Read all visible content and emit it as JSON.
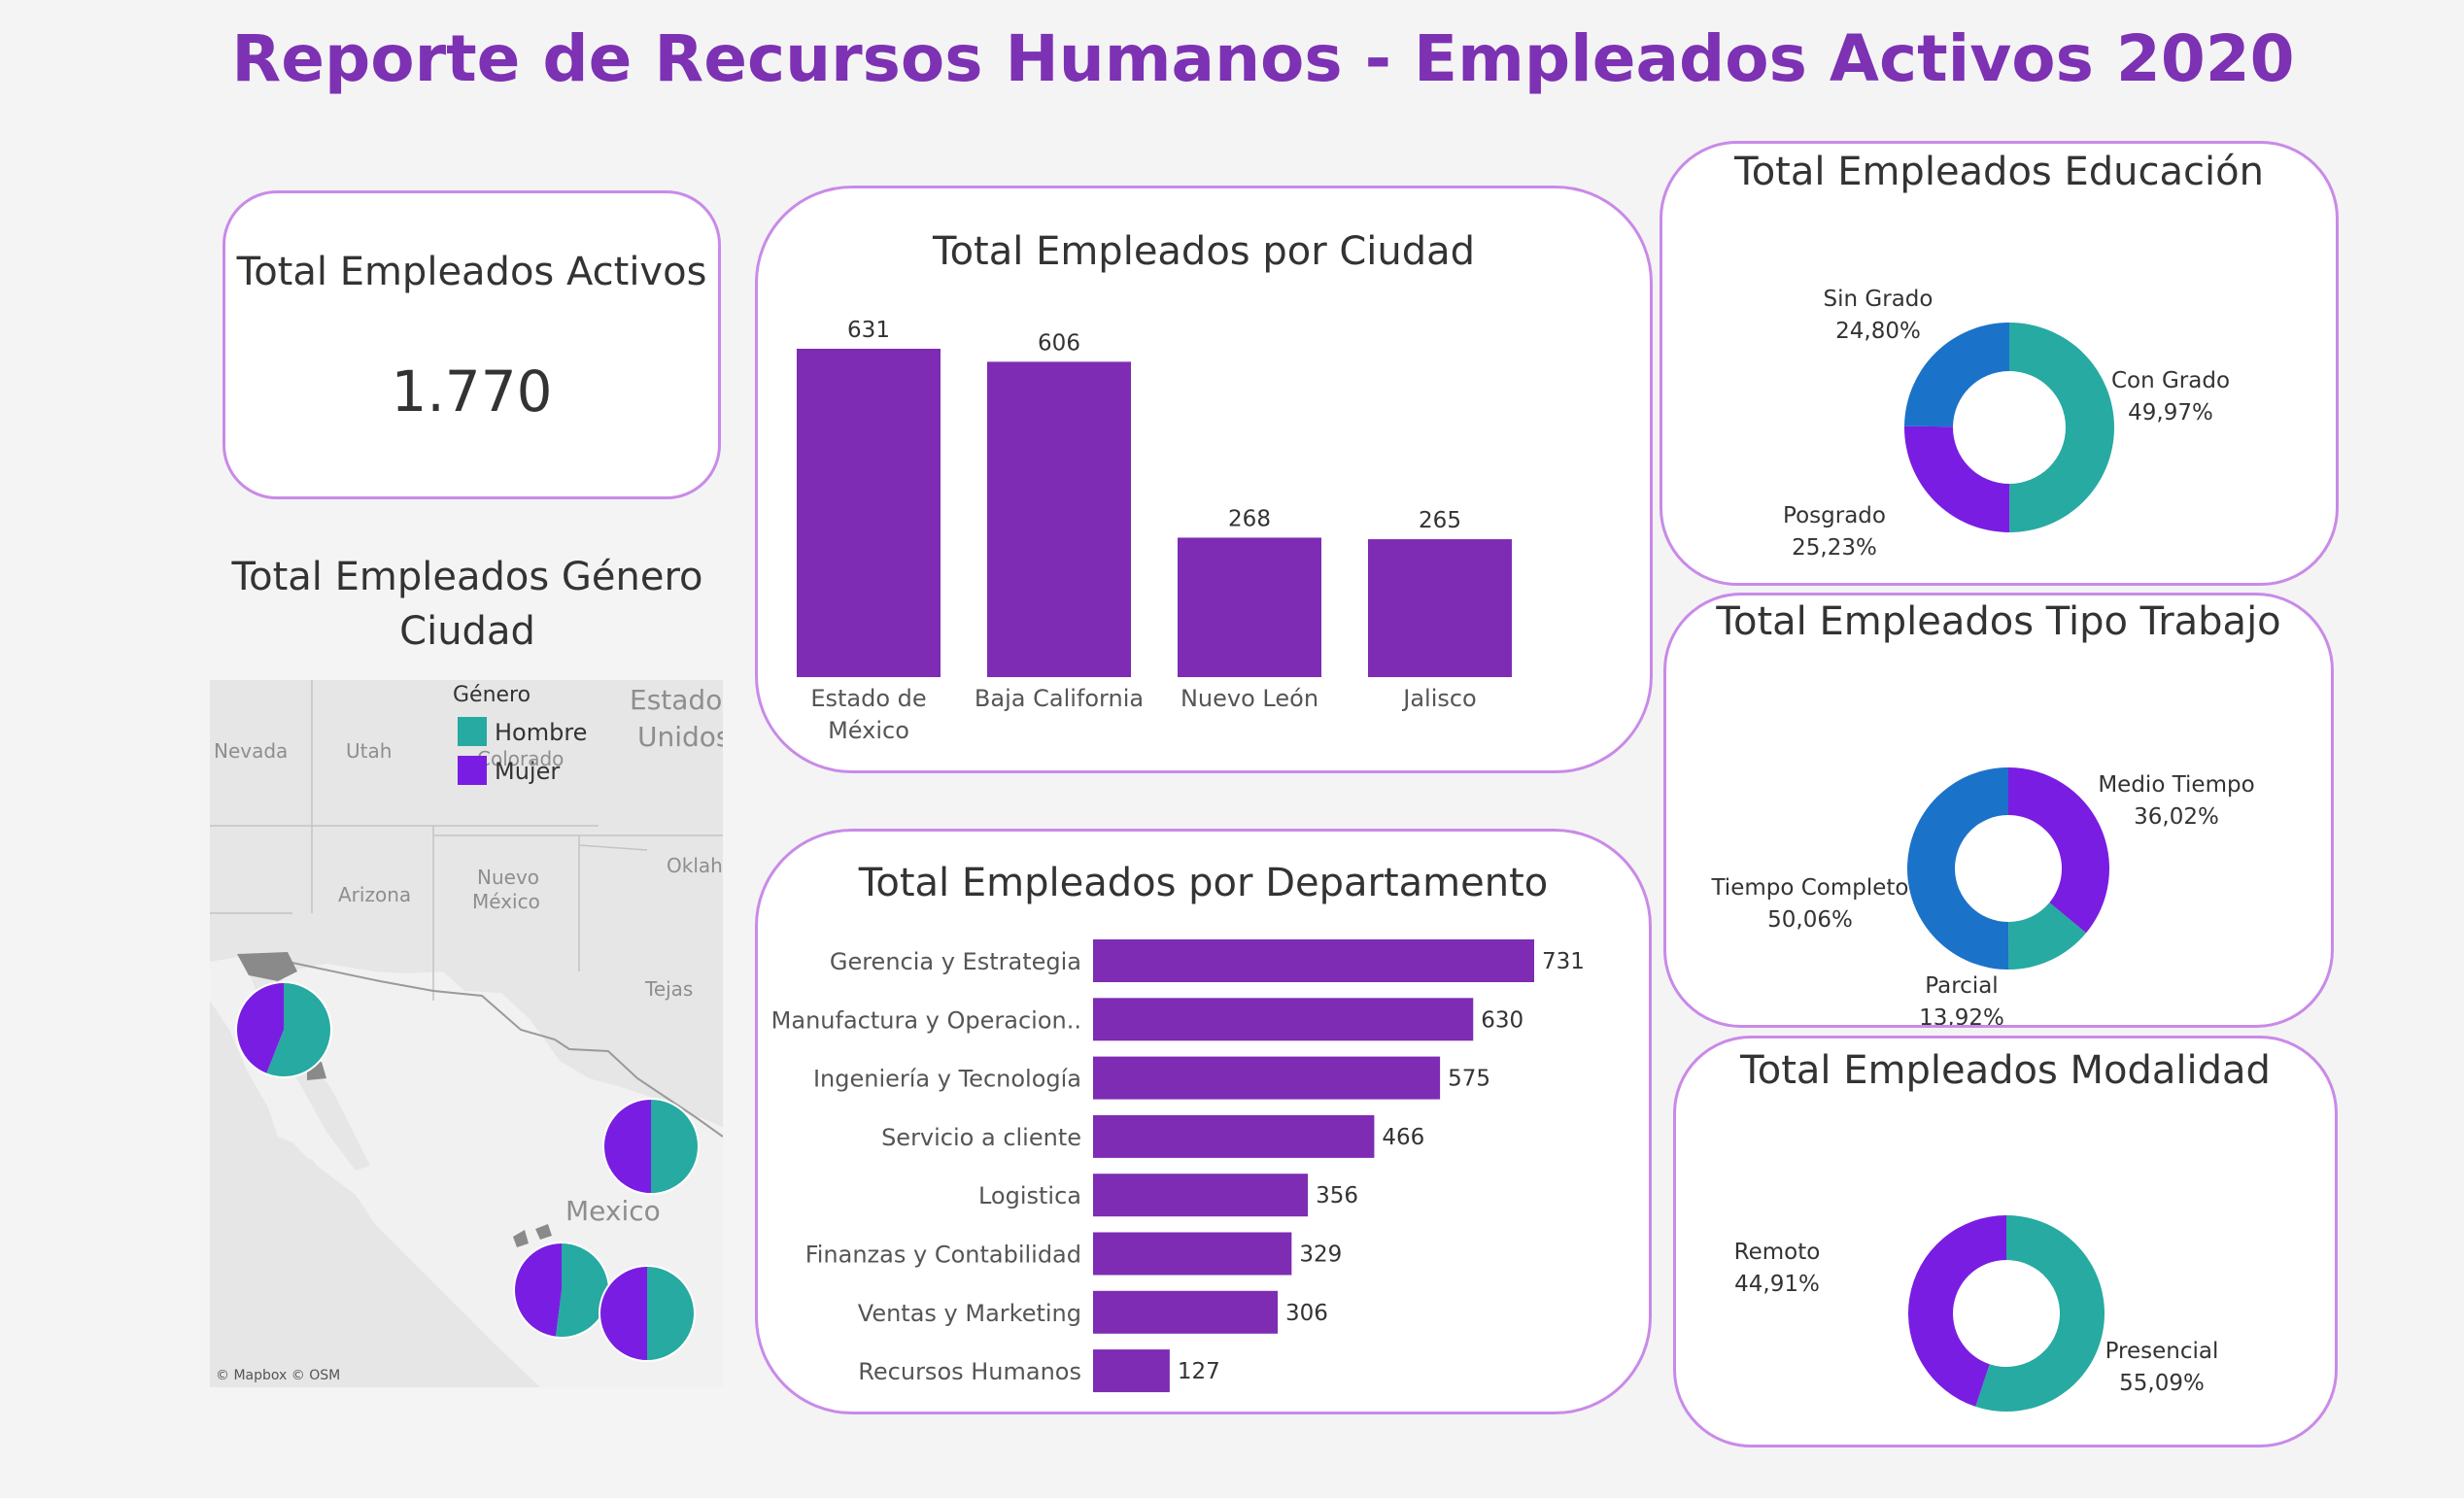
{
  "dashboard": {
    "title": "Reporte de Recursos Humanos - Empleados Activos 2020"
  },
  "kpi": {
    "title": "Total Empleados Activos",
    "value": "1.770"
  },
  "colors": {
    "purple": "#7d2cb3",
    "teal": "#26aaa1",
    "violet": "#7a1de2",
    "blue": "#1b72c9",
    "accent": "#7d31b3"
  },
  "map": {
    "title_line1": "Total Empleados Género",
    "title_line2": "Ciudad",
    "legend_title": "Género",
    "legend_items": [
      "Hombre",
      "Mujer"
    ],
    "labels": [
      "Nevada",
      "Utah",
      "Colorado",
      "Estados",
      "Unidos",
      "Arizona",
      "Nuevo",
      "México",
      "Oklah",
      "Tejas",
      "Mexico"
    ],
    "attribution": "© Mapbox © OSM"
  },
  "chart_data": [
    {
      "type": "bar",
      "title": "Total Empleados por Ciudad",
      "categories": [
        "Estado de México",
        "Baja California",
        "Nuevo León",
        "Jalisco"
      ],
      "category_lines": [
        [
          "Estado de",
          "México"
        ],
        [
          "Baja California"
        ],
        [
          "Nuevo León"
        ],
        [
          "Jalisco"
        ]
      ],
      "values": [
        631,
        606,
        268,
        265
      ],
      "ylim": [
        0,
        631
      ]
    },
    {
      "type": "bar",
      "orientation": "horizontal",
      "title": "Total Empleados por Departamento",
      "categories": [
        "Gerencia y Estrategia",
        "Manufactura y Operacion..",
        "Ingeniería y Tecnología",
        "Servicio a cliente",
        "Logistica",
        "Finanzas y Contabilidad",
        "Ventas y Marketing",
        "Recursos Humanos"
      ],
      "values": [
        731,
        630,
        575,
        466,
        356,
        329,
        306,
        127
      ],
      "xlim": [
        0,
        731
      ]
    },
    {
      "type": "pie",
      "title": "Total Empleados Educación",
      "labels": [
        "Con Grado",
        "Posgrado",
        "Sin Grado"
      ],
      "values": [
        49.97,
        25.23,
        24.8
      ],
      "value_labels": [
        "49,97%",
        "25,23%",
        "24,80%"
      ],
      "colors": [
        "#26aaa1",
        "#7a1de2",
        "#1b72c9"
      ]
    },
    {
      "type": "pie",
      "title": "Total Empleados Tipo Trabajo",
      "labels": [
        "Medio Tiempo",
        "Parcial",
        "Tiempo Completo"
      ],
      "values": [
        36.02,
        13.92,
        50.06
      ],
      "value_labels": [
        "36,02%",
        "13,92%",
        "50,06%"
      ],
      "colors": [
        "#7a1de2",
        "#26aaa1",
        "#1b72c9"
      ]
    },
    {
      "type": "pie",
      "title": "Total Empleados Modalidad",
      "labels": [
        "Presencial",
        "Remoto"
      ],
      "values": [
        55.09,
        44.91
      ],
      "value_labels": [
        "55,09%",
        "44,91%"
      ],
      "colors": [
        "#26aaa1",
        "#7a1de2"
      ]
    },
    {
      "type": "pie",
      "title": "Total Empleados Género Ciudad",
      "series": [
        {
          "name": "Baja California",
          "labels": [
            "Hombre",
            "Mujer"
          ],
          "values": [
            56,
            44
          ]
        },
        {
          "name": "Nuevo León",
          "labels": [
            "Hombre",
            "Mujer"
          ],
          "values": [
            50,
            50
          ]
        },
        {
          "name": "Jalisco",
          "labels": [
            "Hombre",
            "Mujer"
          ],
          "values": [
            52,
            48
          ]
        },
        {
          "name": "Estado de México",
          "labels": [
            "Hombre",
            "Mujer"
          ],
          "values": [
            50,
            50
          ]
        }
      ]
    }
  ]
}
